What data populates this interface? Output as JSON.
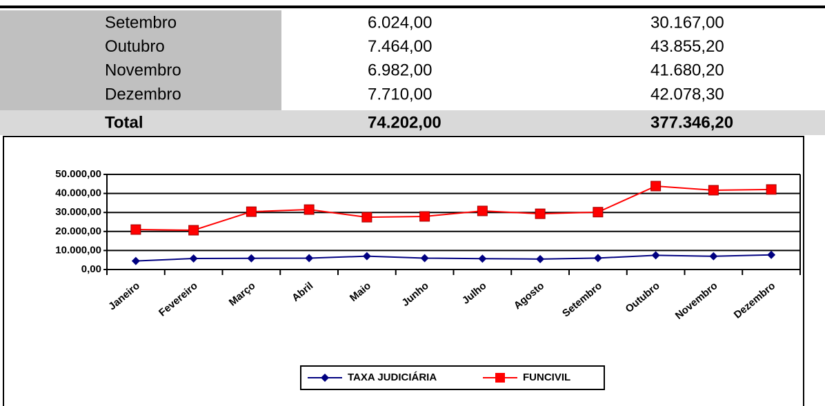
{
  "table": {
    "rows": [
      [
        "Setembro",
        "6.024,00",
        "30.167,00"
      ],
      [
        "Outubro",
        "7.464,00",
        "43.855,20"
      ],
      [
        "Novembro",
        "6.982,00",
        "41.680,20"
      ],
      [
        "Dezembro",
        "7.710,00",
        "42.078,30"
      ]
    ],
    "total": [
      "Total",
      "74.202,00",
      "377.346,20"
    ]
  },
  "chart_data": {
    "type": "line",
    "categories": [
      "Janeiro",
      "Fevereiro",
      "Março",
      "Abril",
      "Maio",
      "Junho",
      "Julho",
      "Agosto",
      "Setembro",
      "Outubro",
      "Novembro",
      "Dezembro"
    ],
    "series": [
      {
        "name": "TAXA JUDICIÁRIA",
        "color": "#000080",
        "marker": "diamond",
        "values": [
          4500,
          5800,
          5900,
          6000,
          7000,
          6000,
          5700,
          5500,
          6024,
          7464,
          6982,
          7710
        ]
      },
      {
        "name": "FUNCIVIL",
        "color": "#ff0000",
        "marker": "square",
        "values": [
          21000,
          20650,
          30400,
          31500,
          27500,
          27900,
          30800,
          29300,
          30167,
          43855.2,
          41680.2,
          42078.3
        ]
      }
    ],
    "ylim": [
      0,
      50000
    ],
    "yticks": [
      {
        "value": 0,
        "label": "0,00"
      },
      {
        "value": 10000,
        "label": "10.000,00"
      },
      {
        "value": 20000,
        "label": "20.000,00"
      },
      {
        "value": 30000,
        "label": "30.000,00"
      },
      {
        "value": 40000,
        "label": "40.000,00"
      },
      {
        "value": 50000,
        "label": "50.000,00"
      }
    ],
    "grid": true,
    "legend": "bottom"
  }
}
